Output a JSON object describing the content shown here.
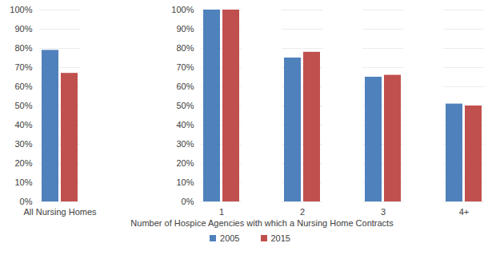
{
  "chart_data": {
    "type": "bar",
    "x_label": "Number of Hospice Agencies with which a Nursing Home Contracts",
    "categories": [
      "All Nursing Homes",
      null,
      "1",
      "2",
      "3",
      "4+"
    ],
    "series": [
      {
        "name": "2005",
        "color": "#4F81BD",
        "values": [
          79,
          null,
          100,
          75,
          65,
          51
        ]
      },
      {
        "name": "2015",
        "color": "#C0504D",
        "values": [
          67,
          null,
          100,
          78,
          66,
          50
        ]
      }
    ],
    "ylim": [
      0,
      100
    ],
    "yticks": [
      {
        "value": 0,
        "label": "0%"
      },
      {
        "value": 10,
        "label": "10%"
      },
      {
        "value": 20,
        "label": "20%"
      },
      {
        "value": 30,
        "label": "30%"
      },
      {
        "value": 40,
        "label": "40%"
      },
      {
        "value": 50,
        "label": "50%"
      },
      {
        "value": 60,
        "label": "60%"
      },
      {
        "value": 70,
        "label": "70%"
      },
      {
        "value": 80,
        "label": "80%"
      },
      {
        "value": 90,
        "label": "90%"
      },
      {
        "value": 100,
        "label": "100%"
      }
    ],
    "grid": true,
    "legend": "bottom"
  }
}
